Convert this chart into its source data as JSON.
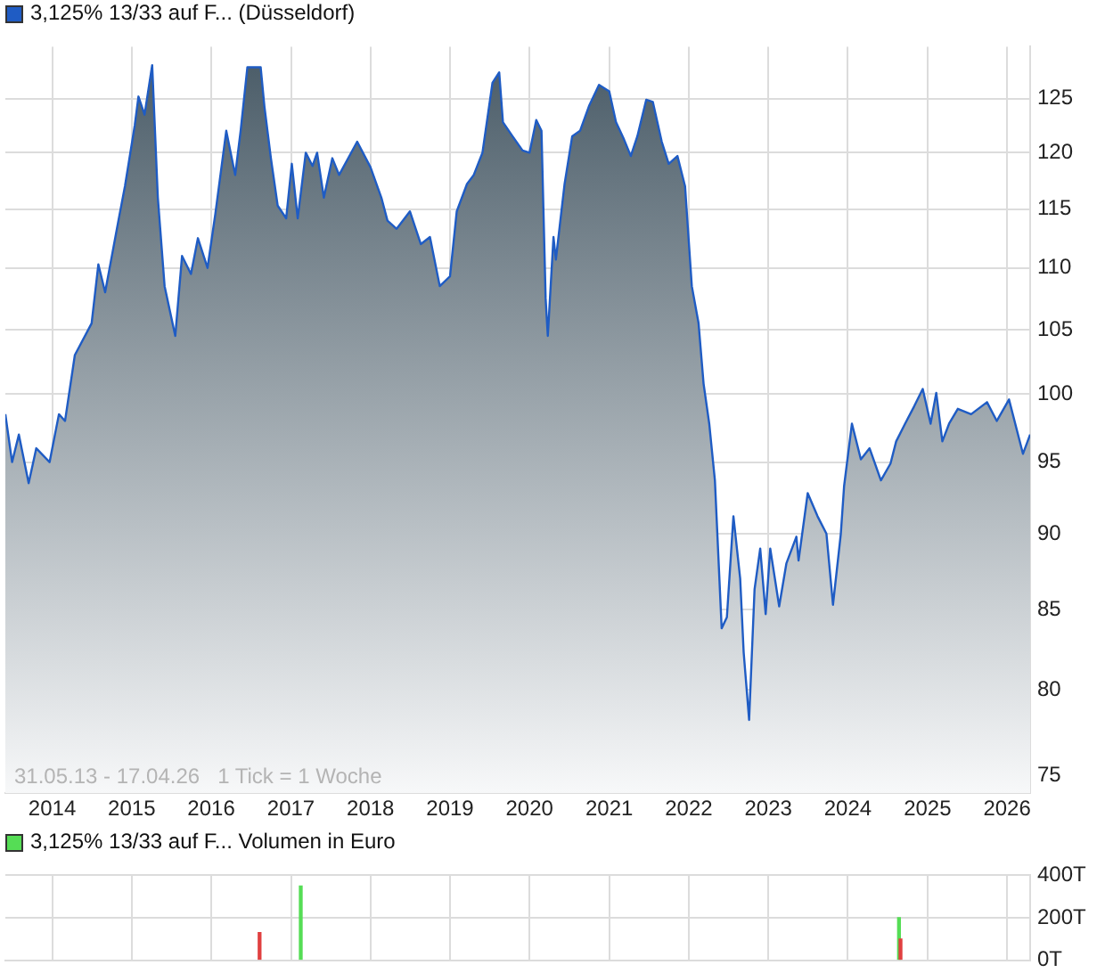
{
  "chart_data": [
    {
      "type": "area",
      "log": true,
      "grid": true,
      "legend": "top left",
      "marker": "none",
      "annotations": [
        "31.05.13 - 17.04.26   1 Tick = 1 Woche"
      ],
      "xlim": [
        "2013-05-31",
        "2026-04-17"
      ],
      "xticks": [
        "2014",
        "2015",
        "2016",
        "2017",
        "2018",
        "2019",
        "2020",
        "2021",
        "2022",
        "2023",
        "2024",
        "2025",
        "2026"
      ],
      "ylim": [
        74,
        130
      ],
      "yticks": [
        75,
        80,
        85,
        90,
        95,
        100,
        105,
        110,
        115,
        120,
        125
      ],
      "x": [
        "2013-05-31",
        "2013-07-01",
        "2013-08-01",
        "2013-09-15",
        "2013-10-20",
        "2013-12-20",
        "2014-02-01",
        "2014-03-01",
        "2014-04-15",
        "2014-07-01",
        "2014-08-01",
        "2014-09-01",
        "2014-11-01",
        "2014-12-01",
        "2015-01-15",
        "2015-02-01",
        "2015-03-01",
        "2015-04-05",
        "2015-05-01",
        "2015-06-01",
        "2015-07-20",
        "2015-08-20",
        "2015-09-30",
        "2015-11-01",
        "2015-12-15",
        "2016-01-20",
        "2016-03-10",
        "2016-04-20",
        "2016-05-15",
        "2016-06-15",
        "2016-08-15",
        "2016-09-01",
        "2016-10-01",
        "2016-11-01",
        "2016-12-10",
        "2017-01-05",
        "2017-02-01",
        "2017-03-10",
        "2017-04-10",
        "2017-05-01",
        "2017-06-01",
        "2017-07-10",
        "2017-08-10",
        "2017-11-01",
        "2018-01-01",
        "2018-02-20",
        "2018-03-20",
        "2018-05-01",
        "2018-07-01",
        "2018-08-20",
        "2018-10-01",
        "2018-11-15",
        "2019-01-01",
        "2019-02-01",
        "2019-03-20",
        "2019-04-20",
        "2019-05-30",
        "2019-07-15",
        "2019-08-15",
        "2019-09-01",
        "2019-10-15",
        "2019-11-30",
        "2020-01-01",
        "2020-02-01",
        "2020-02-25",
        "2020-03-15",
        "2020-03-25",
        "2020-04-20",
        "2020-05-01",
        "2020-06-10",
        "2020-07-15",
        "2020-08-20",
        "2020-09-30",
        "2020-11-15",
        "2021-01-01",
        "2021-02-01",
        "2021-03-10",
        "2021-04-10",
        "2021-05-10",
        "2021-06-20",
        "2021-07-20",
        "2021-08-30",
        "2021-10-01",
        "2021-11-10",
        "2021-12-15",
        "2022-01-15",
        "2022-02-15",
        "2022-03-10",
        "2022-04-05",
        "2022-05-01",
        "2022-06-01",
        "2022-06-25",
        "2022-07-25",
        "2022-08-25",
        "2022-09-10",
        "2022-10-05",
        "2022-10-30",
        "2022-11-25",
        "2022-12-20",
        "2023-01-10",
        "2023-02-20",
        "2023-03-25",
        "2023-05-10",
        "2023-05-20",
        "2023-07-01",
        "2023-08-15",
        "2023-09-25",
        "2023-10-25",
        "2023-11-30",
        "2023-12-15",
        "2024-01-20",
        "2024-03-01",
        "2024-04-10",
        "2024-06-01",
        "2024-07-15",
        "2024-08-10",
        "2024-09-20",
        "2024-11-01",
        "2024-12-10",
        "2025-01-15",
        "2025-02-10",
        "2025-03-10",
        "2025-04-10",
        "2025-05-20",
        "2025-07-20",
        "2025-10-01",
        "2025-11-15",
        "2026-01-10",
        "2026-03-15",
        "2026-04-17"
      ],
      "series": [
        {
          "name": "3,125% 13/33 auf F... (Düsseldorf)",
          "color": "#1f5cc4",
          "values": [
            98.5,
            95,
            97,
            93.5,
            96,
            95,
            98.5,
            98,
            103,
            105.5,
            110.3,
            108,
            114,
            117,
            122.5,
            125.2,
            123.5,
            128.2,
            116,
            108.5,
            104.5,
            111,
            109.5,
            112.5,
            110,
            114.6,
            122,
            118,
            122,
            128,
            128,
            124.3,
            119.5,
            115.3,
            114.2,
            119,
            114.2,
            120,
            118.8,
            120,
            116,
            119.5,
            118,
            121,
            118.7,
            116,
            114,
            113.3,
            114.8,
            112,
            112.6,
            108.5,
            109.3,
            114.8,
            117.2,
            118,
            120,
            126.5,
            127.5,
            122.8,
            121.5,
            120.2,
            120,
            123,
            122,
            107.5,
            104.5,
            112.6,
            110.7,
            117.2,
            121.5,
            122,
            124.3,
            126.3,
            125.7,
            122.8,
            121.2,
            119.7,
            121.5,
            124.9,
            124.7,
            121,
            119,
            119.7,
            117,
            108.5,
            105.5,
            100.8,
            97.8,
            93.7,
            83.8,
            84.5,
            91.2,
            87,
            82.3,
            78.2,
            86.3,
            89,
            84.7,
            89,
            85.2,
            88,
            89.8,
            88.2,
            92.8,
            91.2,
            90,
            85.3,
            90,
            93.3,
            97.8,
            95.2,
            96,
            93.7,
            94.9,
            96.5,
            97.8,
            99.1,
            100.4,
            97.8,
            100.1,
            96.5,
            97.8,
            98.9,
            98.5,
            99.4,
            98,
            99.6,
            95.6,
            97
          ]
        }
      ]
    },
    {
      "type": "bar",
      "grid": true,
      "legend": "top left",
      "tick_labels": "y",
      "xlim": [
        "2013-05-31",
        "2026-04-17"
      ],
      "xticks": [
        "2014",
        "2015",
        "2016",
        "2017",
        "2018",
        "2019",
        "2020",
        "2021",
        "2022",
        "2023",
        "2024",
        "2025",
        "2026"
      ],
      "ylim": [
        0,
        400
      ],
      "yticks": [
        {
          "value": 0,
          "label": "0T"
        },
        {
          "value": 200,
          "label": "200T"
        },
        {
          "value": 400,
          "label": "400T"
        }
      ],
      "x": [
        "2016-08-10",
        "2017-02-15",
        "2024-08-23",
        "2024-08-30"
      ],
      "series": [
        {
          "name": "3,125% 13/33 auf F... Volumen in Euro",
          "color": "#55dd55",
          "colors": [
            "#e04040",
            "#55dd55",
            "#55dd55",
            "#e04040"
          ],
          "values": [
            130,
            350,
            200,
            100
          ]
        }
      ]
    }
  ]
}
